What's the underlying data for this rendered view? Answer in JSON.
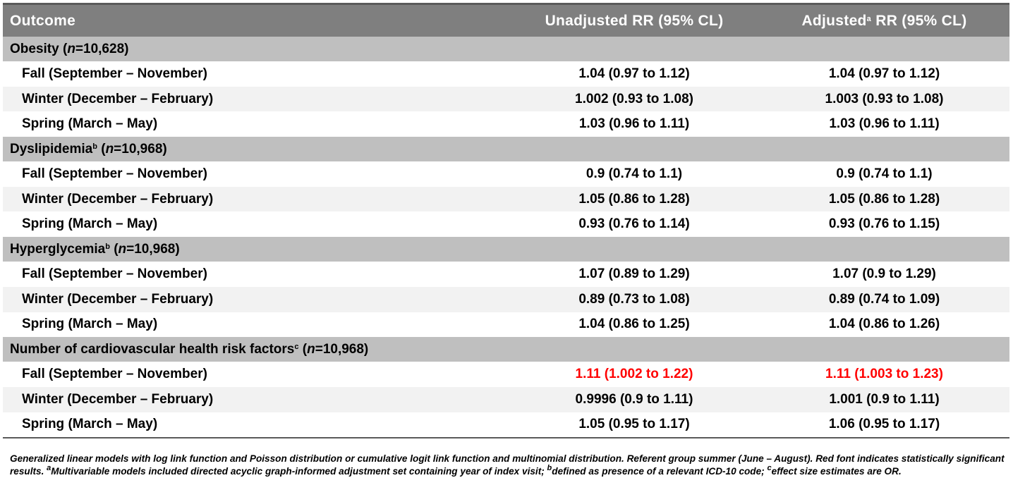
{
  "header": {
    "col1": "Outcome",
    "col2": "Unadjusted RR (95% CL)",
    "col3_pre": "Adjusted",
    "col3_sup": "a",
    "col3_post": " RR (95% CL)"
  },
  "sections": [
    {
      "title_pre": "Obesity (",
      "title_sup": "",
      "title_n_label": "n",
      "title_post": "=10,628)",
      "rows": [
        {
          "label": "Fall (September – November)",
          "unadj": "1.04 (0.97 to 1.12)",
          "adj": "1.04 (0.97 to 1.12)"
        },
        {
          "label": "Winter (December – February)",
          "unadj": "1.002 (0.93 to 1.08)",
          "adj": "1.003 (0.93 to 1.08)"
        },
        {
          "label": "Spring (March – May)",
          "unadj": "1.03 (0.96 to 1.11)",
          "adj": "1.03 (0.96 to 1.11)"
        }
      ]
    },
    {
      "title_pre": "Dyslipidemia",
      "title_sup": "b",
      "title_n_label": "n",
      "title_post": "=10,968)",
      "rows": [
        {
          "label": "Fall (September – November)",
          "unadj": "0.9 (0.74 to 1.1)",
          "adj": "0.9 (0.74 to 1.1)"
        },
        {
          "label": "Winter (December – February)",
          "unadj": "1.05 (0.86 to 1.28)",
          "adj": "1.05 (0.86 to 1.28)"
        },
        {
          "label": "Spring (March – May)",
          "unadj": "0.93 (0.76 to 1.14)",
          "adj": "0.93 (0.76 to 1.15)"
        }
      ]
    },
    {
      "title_pre": "Hyperglycemia",
      "title_sup": "b",
      "title_n_label": "n",
      "title_post": "=10,968)",
      "rows": [
        {
          "label": "Fall (September – November)",
          "unadj": "1.07 (0.89 to 1.29)",
          "adj": "1.07 (0.9 to 1.29)"
        },
        {
          "label": "Winter (December – February)",
          "unadj": "0.89 (0.73 to 1.08)",
          "adj": "0.89 (0.74 to 1.09)"
        },
        {
          "label": "Spring (March – May)",
          "unadj": "1.04 (0.86 to 1.25)",
          "adj": "1.04 (0.86 to 1.26)"
        }
      ]
    },
    {
      "title_pre": "Number of cardiovascular health risk factors",
      "title_sup": "c",
      "title_n_label": "n",
      "title_post": "=10,968)",
      "rows": [
        {
          "label": "Fall (September – November)",
          "unadj": "1.11 (1.002 to 1.22)",
          "adj": "1.11 (1.003 to 1.23)",
          "significant": true
        },
        {
          "label": "Winter (December – February)",
          "unadj": "0.9996 (0.9 to 1.11)",
          "adj": "1.001 (0.9 to 1.11)"
        },
        {
          "label": "Spring (March – May)",
          "unadj": "1.05 (0.95 to 1.17)",
          "adj": "1.06 (0.95 to 1.17)"
        }
      ]
    }
  ],
  "colors": {
    "header_bg": "#7f7f7f",
    "section_bg": "#bfbfbf",
    "row_alt_bg": "#f2f2f2",
    "significant": "#ff0000"
  },
  "footnote": {
    "part1": "Generalized linear models with log link function and Poisson distribution or cumulative logit link function and multinomial distribution. Referent group summer (June – August). Red font indicates statistically significant results. ",
    "sup_a": "a",
    "part2": "Multivariable models included directed acyclic graph-informed adjustment set containing year of index visit; ",
    "sup_b": "b",
    "part3": "defined as presence of a relevant ICD-10 code; ",
    "sup_c": "c",
    "part4": "effect size estimates are OR."
  }
}
